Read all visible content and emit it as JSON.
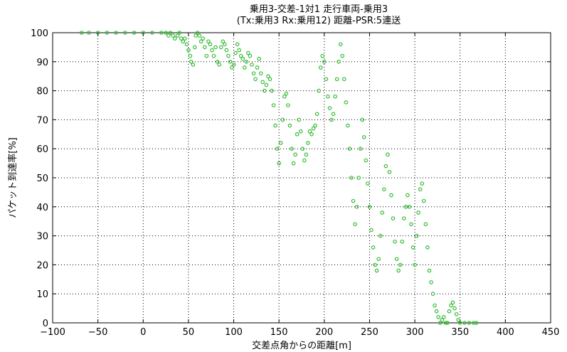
{
  "chart_data": {
    "type": "scatter",
    "title_lines": [
      "乗用3-交差-1対1 走行車両-乗用3",
      "(Tx:乗用3 Rx:乗用12) 距離-PSR:5連送"
    ],
    "xlabel": "交差点角からの距離[m]",
    "ylabel": "パケット到達率[%]",
    "xlim": [
      -100,
      450
    ],
    "ylim": [
      0,
      100
    ],
    "xticks": [
      -100,
      -50,
      0,
      50,
      100,
      150,
      200,
      250,
      300,
      350,
      400,
      450
    ],
    "yticks": [
      0,
      10,
      20,
      30,
      40,
      50,
      60,
      70,
      80,
      90,
      100
    ],
    "grid": true,
    "color": "#33bb33",
    "points": [
      [
        -68,
        100
      ],
      [
        -60,
        100
      ],
      [
        -50,
        100
      ],
      [
        -40,
        100
      ],
      [
        -30,
        100
      ],
      [
        -20,
        100
      ],
      [
        -10,
        100
      ],
      [
        0,
        100
      ],
      [
        10,
        100
      ],
      [
        20,
        100
      ],
      [
        25,
        100
      ],
      [
        28,
        99
      ],
      [
        30,
        100
      ],
      [
        33,
        99
      ],
      [
        35,
        98
      ],
      [
        38,
        99
      ],
      [
        40,
        100
      ],
      [
        42,
        98
      ],
      [
        44,
        97
      ],
      [
        46,
        98
      ],
      [
        48,
        96
      ],
      [
        50,
        94
      ],
      [
        52,
        92
      ],
      [
        53,
        90
      ],
      [
        55,
        89
      ],
      [
        57,
        95
      ],
      [
        58,
        99
      ],
      [
        60,
        100
      ],
      [
        62,
        99
      ],
      [
        64,
        97
      ],
      [
        66,
        98
      ],
      [
        68,
        95
      ],
      [
        70,
        92
      ],
      [
        72,
        97
      ],
      [
        74,
        96
      ],
      [
        76,
        94
      ],
      [
        78,
        92
      ],
      [
        80,
        95
      ],
      [
        82,
        90
      ],
      [
        84,
        89
      ],
      [
        86,
        95
      ],
      [
        88,
        97
      ],
      [
        90,
        96
      ],
      [
        92,
        94
      ],
      [
        94,
        92
      ],
      [
        96,
        90
      ],
      [
        98,
        88
      ],
      [
        100,
        89
      ],
      [
        102,
        93
      ],
      [
        104,
        96
      ],
      [
        106,
        94
      ],
      [
        108,
        92
      ],
      [
        110,
        91
      ],
      [
        112,
        88
      ],
      [
        114,
        90
      ],
      [
        116,
        93
      ],
      [
        118,
        92
      ],
      [
        120,
        89
      ],
      [
        122,
        86
      ],
      [
        124,
        84
      ],
      [
        126,
        88
      ],
      [
        128,
        91
      ],
      [
        130,
        86
      ],
      [
        132,
        83
      ],
      [
        134,
        80
      ],
      [
        136,
        82
      ],
      [
        138,
        85
      ],
      [
        140,
        84
      ],
      [
        142,
        80
      ],
      [
        144,
        75
      ],
      [
        146,
        68
      ],
      [
        148,
        60
      ],
      [
        150,
        55
      ],
      [
        152,
        62
      ],
      [
        154,
        70
      ],
      [
        156,
        78
      ],
      [
        158,
        79
      ],
      [
        160,
        75
      ],
      [
        162,
        68
      ],
      [
        164,
        60
      ],
      [
        166,
        55
      ],
      [
        168,
        58
      ],
      [
        170,
        65
      ],
      [
        172,
        70
      ],
      [
        174,
        66
      ],
      [
        176,
        60
      ],
      [
        178,
        56
      ],
      [
        180,
        58
      ],
      [
        182,
        62
      ],
      [
        184,
        66
      ],
      [
        186,
        65
      ],
      [
        188,
        67
      ],
      [
        190,
        68
      ],
      [
        192,
        72
      ],
      [
        194,
        80
      ],
      [
        196,
        88
      ],
      [
        198,
        92
      ],
      [
        200,
        90
      ],
      [
        202,
        84
      ],
      [
        204,
        78
      ],
      [
        206,
        74
      ],
      [
        208,
        70
      ],
      [
        210,
        72
      ],
      [
        212,
        78
      ],
      [
        214,
        84
      ],
      [
        216,
        90
      ],
      [
        218,
        96
      ],
      [
        220,
        92
      ],
      [
        222,
        84
      ],
      [
        224,
        76
      ],
      [
        226,
        68
      ],
      [
        228,
        60
      ],
      [
        230,
        50
      ],
      [
        232,
        42
      ],
      [
        234,
        34
      ],
      [
        236,
        40
      ],
      [
        238,
        50
      ],
      [
        240,
        60
      ],
      [
        242,
        70
      ],
      [
        244,
        64
      ],
      [
        246,
        56
      ],
      [
        248,
        48
      ],
      [
        250,
        40
      ],
      [
        252,
        32
      ],
      [
        254,
        26
      ],
      [
        256,
        20
      ],
      [
        258,
        18
      ],
      [
        260,
        22
      ],
      [
        262,
        30
      ],
      [
        264,
        38
      ],
      [
        266,
        46
      ],
      [
        268,
        54
      ],
      [
        270,
        58
      ],
      [
        272,
        52
      ],
      [
        274,
        44
      ],
      [
        276,
        36
      ],
      [
        278,
        28
      ],
      [
        280,
        22
      ],
      [
        282,
        18
      ],
      [
        284,
        20
      ],
      [
        286,
        28
      ],
      [
        288,
        36
      ],
      [
        290,
        40
      ],
      [
        292,
        44
      ],
      [
        294,
        40
      ],
      [
        296,
        34
      ],
      [
        298,
        26
      ],
      [
        300,
        20
      ],
      [
        302,
        30
      ],
      [
        304,
        38
      ],
      [
        306,
        46
      ],
      [
        308,
        48
      ],
      [
        310,
        42
      ],
      [
        312,
        34
      ],
      [
        314,
        26
      ],
      [
        316,
        18
      ],
      [
        318,
        14
      ],
      [
        320,
        10
      ],
      [
        322,
        6
      ],
      [
        324,
        4
      ],
      [
        326,
        2
      ],
      [
        328,
        0
      ],
      [
        330,
        1
      ],
      [
        332,
        2
      ],
      [
        334,
        0
      ],
      [
        336,
        0
      ],
      [
        338,
        4
      ],
      [
        340,
        6
      ],
      [
        342,
        7
      ],
      [
        344,
        5
      ],
      [
        346,
        3
      ],
      [
        348,
        1
      ],
      [
        350,
        0
      ],
      [
        355,
        0
      ],
      [
        360,
        0
      ],
      [
        365,
        0
      ],
      [
        368,
        0
      ]
    ]
  }
}
